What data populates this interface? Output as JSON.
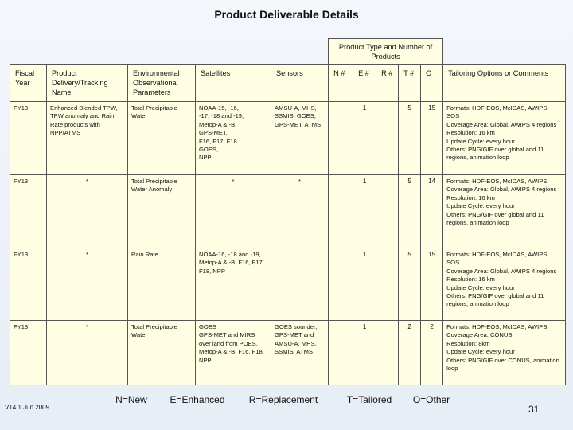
{
  "header": {
    "title": "Product Deliverable Details"
  },
  "table": {
    "group_header": "Product Type and Number of Products",
    "columns": [
      "Fiscal Year",
      "Product Delivery/Tracking Name",
      "Environmental Observational Parameters",
      "Satellites",
      "Sensors",
      "N #",
      "E #",
      "R #",
      "T #",
      "O",
      "Tailoring Options or Comments"
    ],
    "rows": [
      [
        "FY13",
        "Enhanced Blended TPW, TPW anomaly and Rain Rate products with NPP/ATMS",
        "Total Precipitable Water",
        [
          "NOAA-15, -16,",
          "-17, -18 and -19,",
          "Metop-A & -B,",
          "GPS-MET,",
          "F16, F17, F18",
          "GOES,",
          "NPP"
        ],
        "AMSU-A, MHS, SSMIS, GOES, GPS-MET, ATMS",
        null,
        1,
        null,
        5,
        15,
        [
          "Formats: HDF-EOS, McIDAS, AWIPS, SOS",
          "Coverage Area: Global, AWIPS 4 regions",
          "Resolution: 16 km",
          "Update Cycle: every hour",
          "Others: PNG/GIF over global and 11 regions, animation loop"
        ]
      ],
      [
        "FY13",
        "*",
        "Total Precipitable Water Anomaly",
        "*",
        "*",
        null,
        1,
        null,
        5,
        14,
        [
          "Formats: HDF-EOS, McIDAS, AWIPS",
          "Coverage Area: Global, AWIPS 4 regions",
          "Resolution: 16 km",
          "Update Cycle: every hour",
          "Others: PNG/GIF over global and 11 regions, animation loop"
        ]
      ],
      [
        "FY13",
        "*",
        "Rain Rate",
        "NOAA-16, -18 and -19, Metop-A & -B, F16, F17, F18, NPP",
        null,
        null,
        1,
        null,
        5,
        15,
        [
          "Formats: HDF-EOS, McIDAS, AWIPS, SOS",
          "Coverage Area: Global, AWIPS 4 regions",
          "Resolution: 16 km",
          "Update Cycle: every hour",
          "Others: PNG/GIF over global and 11 regions, animation loop"
        ]
      ],
      [
        "FY13",
        "*",
        "Total Precipitable Water",
        [
          "GOES",
          "GPS-MET and MIRS over land from POES, Metop-A & -B, F16, F18, NPP"
        ],
        [
          "GOES sounder,",
          "GPS-MET and AMSU-A, MHS, SSMIS, ATMS"
        ],
        null,
        1,
        null,
        2,
        2,
        [
          "Formats: HDF-EOS, McIDAS, AWIPS",
          "Coverage Area: CONUS",
          "Resolution: 8km",
          "Update Cycle: every hour",
          "Others: PNG/GIF over CONUS, animation loop"
        ]
      ]
    ]
  },
  "footer": {
    "legend": [
      "N=New",
      "E=Enhanced",
      "R=Replacement",
      "T=Tailored",
      "O=Other"
    ],
    "version": "V14.1 Jun 2009",
    "page": 31
  }
}
